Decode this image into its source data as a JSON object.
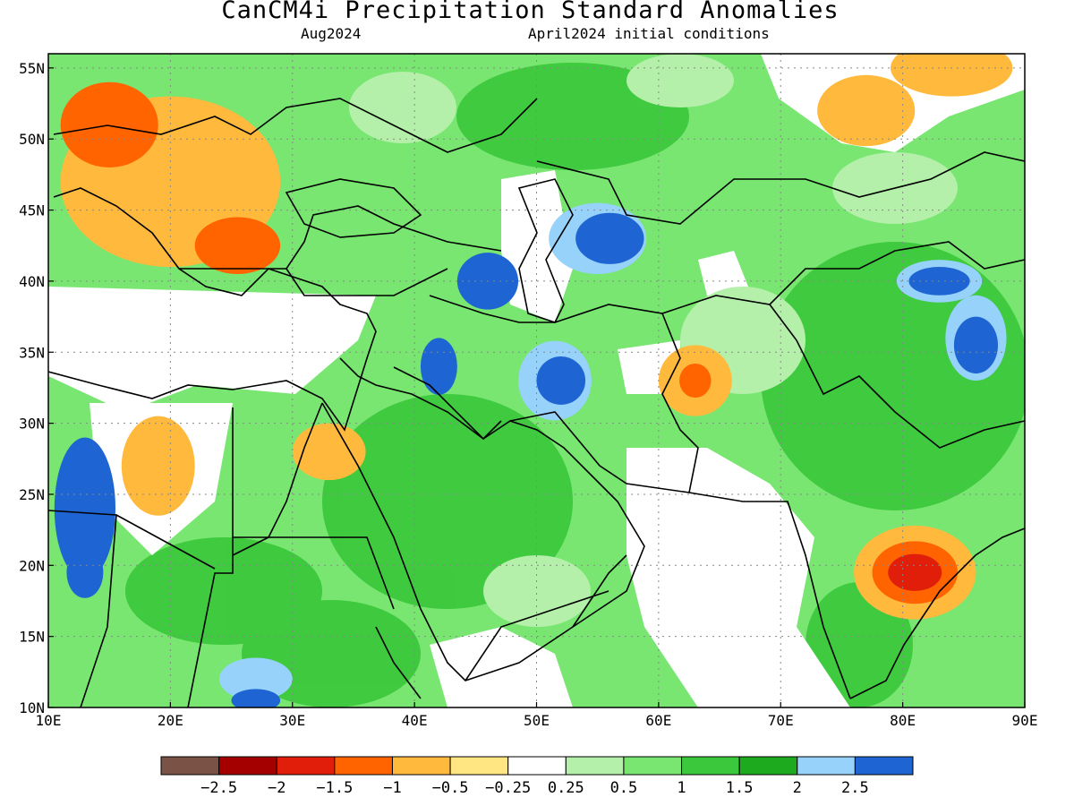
{
  "title": "CanCM4i Precipitation Standard Anomalies",
  "valid_month": "Aug2024",
  "initial_conditions": "April2024 initial conditions",
  "map": {
    "lon_range": [
      10,
      90
    ],
    "lat_range": [
      10,
      56
    ],
    "lon_ticks": [
      {
        "value": 10,
        "label": "10E"
      },
      {
        "value": 20,
        "label": "20E"
      },
      {
        "value": 30,
        "label": "30E"
      },
      {
        "value": 40,
        "label": "40E"
      },
      {
        "value": 50,
        "label": "50E"
      },
      {
        "value": 60,
        "label": "60E"
      },
      {
        "value": 70,
        "label": "70E"
      },
      {
        "value": 80,
        "label": "80E"
      },
      {
        "value": 90,
        "label": "90E"
      }
    ],
    "lat_ticks": [
      {
        "value": 10,
        "label": "10N"
      },
      {
        "value": 15,
        "label": "15N"
      },
      {
        "value": 20,
        "label": "20N"
      },
      {
        "value": 25,
        "label": "25N"
      },
      {
        "value": 30,
        "label": "30N"
      },
      {
        "value": 35,
        "label": "35N"
      },
      {
        "value": 40,
        "label": "40N"
      },
      {
        "value": 45,
        "label": "45N"
      },
      {
        "value": 50,
        "label": "50N"
      },
      {
        "value": 55,
        "label": "55N"
      }
    ],
    "grid": true
  },
  "colorbar": {
    "colors": [
      "#7a5246",
      "#a50000",
      "#e01e0a",
      "#ff6400",
      "#ffb93c",
      "#ffe682",
      "#ffffff",
      "#b4f0aa",
      "#78e671",
      "#3cc83c",
      "#1eaa1e",
      "#96d2fa",
      "#1e64d2"
    ],
    "labels": [
      "−2.5",
      "−2",
      "−1.5",
      "−1",
      "−0.5",
      "−0.25",
      "0.25",
      "0.5",
      "1",
      "1.5",
      "2",
      "2.5"
    ]
  },
  "anomaly_regions": [
    {
      "lon": 20,
      "lat": 47,
      "rx": 9,
      "ry": 6,
      "level": 4
    },
    {
      "lon": 15,
      "lat": 51,
      "rx": 4,
      "ry": 3,
      "level": 3
    },
    {
      "lon": 25.5,
      "lat": 42.5,
      "rx": 3.5,
      "ry": 2,
      "level": 3
    },
    {
      "lon": 19,
      "lat": 27,
      "rx": 3,
      "ry": 3.5,
      "level": 4
    },
    {
      "lon": 33,
      "lat": 28,
      "rx": 3,
      "ry": 2,
      "level": 4
    },
    {
      "lon": 63,
      "lat": 33,
      "rx": 3,
      "ry": 2.5,
      "level": 4
    },
    {
      "lon": 63,
      "lat": 33,
      "rx": 1.3,
      "ry": 1.2,
      "level": 3
    },
    {
      "lon": 81,
      "lat": 19.5,
      "rx": 5,
      "ry": 3.3,
      "level": 4
    },
    {
      "lon": 81,
      "lat": 19.5,
      "rx": 3.5,
      "ry": 2.2,
      "level": 3
    },
    {
      "lon": 81,
      "lat": 19.5,
      "rx": 2.2,
      "ry": 1.3,
      "level": 2
    },
    {
      "lon": 77,
      "lat": 52,
      "rx": 4,
      "ry": 2.5,
      "level": 4
    },
    {
      "lon": 84,
      "lat": 55,
      "rx": 5,
      "ry": 2,
      "level": 4
    },
    {
      "lon": 55,
      "lat": 43,
      "rx": 4,
      "ry": 2.5,
      "level": 11
    },
    {
      "lon": 56,
      "lat": 43,
      "rx": 2.8,
      "ry": 1.8,
      "level": 12
    },
    {
      "lon": 46,
      "lat": 40,
      "rx": 2.5,
      "ry": 2,
      "level": 12
    },
    {
      "lon": 51.5,
      "lat": 33,
      "rx": 3,
      "ry": 2.8,
      "level": 11
    },
    {
      "lon": 52,
      "lat": 33,
      "rx": 2,
      "ry": 1.7,
      "level": 12
    },
    {
      "lon": 42,
      "lat": 34,
      "rx": 1.5,
      "ry": 2,
      "level": 12
    },
    {
      "lon": 13,
      "lat": 24,
      "rx": 2.5,
      "ry": 5,
      "level": 12
    },
    {
      "lon": 13,
      "lat": 19.5,
      "rx": 1.5,
      "ry": 1.8,
      "level": 12
    },
    {
      "lon": 86,
      "lat": 36,
      "rx": 2.5,
      "ry": 3,
      "level": 11
    },
    {
      "lon": 86,
      "lat": 35.5,
      "rx": 1.8,
      "ry": 2,
      "level": 12
    },
    {
      "lon": 83,
      "lat": 40,
      "rx": 3.5,
      "ry": 1.5,
      "level": 11
    },
    {
      "lon": 83,
      "lat": 40,
      "rx": 2.5,
      "ry": 1,
      "level": 12
    },
    {
      "lon": 27,
      "lat": 12,
      "rx": 3,
      "ry": 1.5,
      "level": 11
    },
    {
      "lon": 27,
      "lat": 10.5,
      "rx": 2,
      "ry": 0.8,
      "level": 12
    }
  ]
}
